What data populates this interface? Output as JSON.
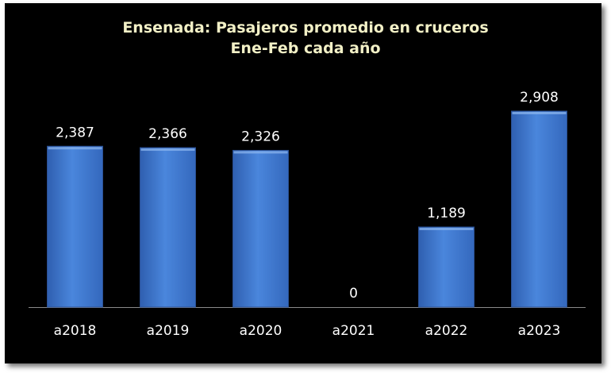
{
  "chart_data": {
    "type": "bar",
    "title": "Ensenada: Pasajeros promedio en cruceros",
    "subtitle": "Ene-Feb cada año",
    "categories": [
      "a2018",
      "a2019",
      "a2020",
      "a2021",
      "a2022",
      "a2023"
    ],
    "values": [
      2387,
      2366,
      2326,
      0,
      1189,
      2908
    ],
    "value_labels": [
      "2,387",
      "2,366",
      "2,326",
      "0",
      "1,189",
      "2,908"
    ],
    "grid": false,
    "legend": "none",
    "colors": {
      "background": "#000000",
      "bar": "#3f78d2",
      "title": "#f2f0c6",
      "text": "#ffffff"
    }
  }
}
